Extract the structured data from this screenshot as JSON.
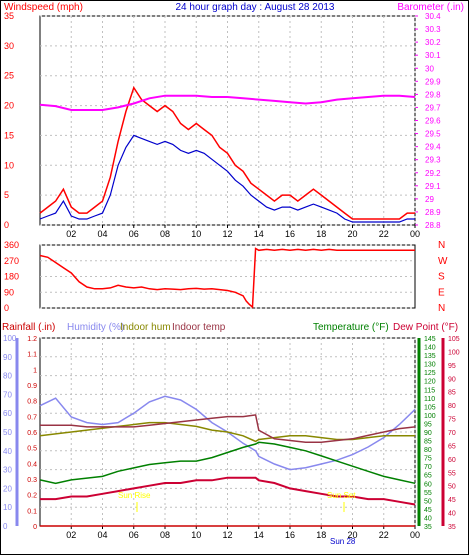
{
  "colors": {
    "frame": "#000000",
    "bg": "#ffffff",
    "grid": "#c0c0c0",
    "wind": "#ff0000",
    "wind_avg": "#0000cc",
    "barometer": "#ff00ff",
    "direction": "#ff0000",
    "rain": "#cc0000",
    "humidity": "#8888ee",
    "indoor_hum": "#888800",
    "indoor_temp": "#993344",
    "temperature": "#008000",
    "dew_point": "#cc0033",
    "sun": "#ffff00"
  },
  "chart_data": [
    {
      "type": "line",
      "title": "24 hour graph day : August 28 2013",
      "ylabel_left": "Windspeed (mph)",
      "ylabel_right": "Barometer (.in)",
      "x_ticks": [
        "02",
        "04",
        "06",
        "08",
        "10",
        "12",
        "14",
        "16",
        "18",
        "20",
        "22",
        "00"
      ],
      "xlim": [
        0,
        24
      ],
      "y_left_ticks": [
        "0",
        "5",
        "10",
        "15",
        "20",
        "25",
        "30",
        "35"
      ],
      "ylim_left": [
        0,
        35
      ],
      "y_right_ticks": [
        "28.8",
        "28.9",
        "29",
        "29.1",
        "29.2",
        "29.3",
        "29.4",
        "29.5",
        "29.6",
        "29.7",
        "29.8",
        "29.9",
        "30",
        "30.1",
        "30.2",
        "30.3",
        "30.4"
      ],
      "ylim_right": [
        28.8,
        30.4
      ],
      "series": [
        {
          "name": "Windspeed (mph)",
          "x": [
            0,
            0.5,
            1,
            1.5,
            2,
            2.5,
            3,
            3.5,
            4,
            4.5,
            5,
            5.5,
            6,
            6.5,
            7,
            7.5,
            8,
            8.5,
            9,
            9.5,
            10,
            10.5,
            11,
            11.5,
            12,
            12.5,
            13,
            13.5,
            14,
            14.5,
            15,
            15.5,
            16,
            16.5,
            17,
            17.5,
            18,
            18.5,
            19,
            19.5,
            20,
            20.5,
            21,
            21.5,
            22,
            22.5,
            23,
            23.5,
            24
          ],
          "values": [
            2,
            3,
            4,
            6,
            3,
            2,
            2,
            3,
            4,
            8,
            14,
            19,
            23,
            21,
            20,
            19,
            20,
            19,
            17,
            16,
            17,
            16,
            15,
            13,
            12,
            10,
            9,
            7,
            6,
            5,
            4,
            5,
            5,
            4,
            5,
            6,
            5,
            4,
            3,
            2,
            1,
            1,
            1,
            1,
            1,
            1,
            1,
            2,
            2
          ]
        },
        {
          "name": "Average wind",
          "x": [
            0,
            0.5,
            1,
            1.5,
            2,
            2.5,
            3,
            3.5,
            4,
            4.5,
            5,
            5.5,
            6,
            6.5,
            7,
            7.5,
            8,
            8.5,
            9,
            9.5,
            10,
            10.5,
            11,
            11.5,
            12,
            12.5,
            13,
            13.5,
            14,
            14.5,
            15,
            15.5,
            16,
            16.5,
            17,
            17.5,
            18,
            18.5,
            19,
            19.5,
            20,
            20.5,
            21,
            21.5,
            22,
            22.5,
            23,
            23.5,
            24
          ],
          "values": [
            1,
            1.5,
            2,
            4,
            1.5,
            1,
            1,
            1.5,
            2,
            5,
            10,
            13,
            15,
            14.5,
            14,
            13.5,
            14,
            13.5,
            12.5,
            12,
            12.5,
            12,
            11,
            10,
            9,
            7.5,
            6.5,
            5,
            4,
            3,
            2.5,
            3,
            3,
            2.5,
            3,
            3.5,
            3,
            2.5,
            2,
            1,
            0.5,
            0.5,
            0.5,
            0.5,
            0.5,
            0.5,
            0.5,
            1,
            1
          ]
        },
        {
          "name": "Barometer (.in)",
          "axis": "right",
          "x": [
            0,
            1,
            2,
            3,
            4,
            5,
            6,
            7,
            8,
            9,
            10,
            11,
            12,
            13,
            14,
            15,
            16,
            17,
            18,
            19,
            20,
            21,
            22,
            23,
            24
          ],
          "values": [
            29.72,
            29.71,
            29.68,
            29.68,
            29.68,
            29.7,
            29.73,
            29.77,
            29.79,
            29.79,
            29.79,
            29.78,
            29.78,
            29.77,
            29.76,
            29.75,
            29.74,
            29.73,
            29.74,
            29.76,
            29.77,
            29.78,
            29.79,
            29.79,
            29.78
          ]
        }
      ]
    },
    {
      "type": "line",
      "y_ticks": [
        "0",
        "90",
        "180",
        "270",
        "360"
      ],
      "ylim": [
        0,
        360
      ],
      "y_right_labels": [
        "N",
        "W",
        "S",
        "E",
        "N"
      ],
      "x": [
        0,
        0.5,
        1,
        1.5,
        2,
        2.5,
        3,
        3.5,
        4,
        4.5,
        5,
        5.5,
        6,
        6.5,
        7,
        7.5,
        8,
        8.5,
        9,
        9.5,
        10,
        10.5,
        11,
        11.5,
        12,
        12.5,
        13,
        13.2,
        13.4,
        13.6,
        13.8,
        14,
        14.5,
        15,
        15.5,
        16,
        16.5,
        17,
        17.5,
        18,
        18.5,
        19,
        20,
        21,
        22,
        23,
        24
      ],
      "values": [
        300,
        290,
        260,
        230,
        200,
        150,
        120,
        110,
        110,
        115,
        130,
        120,
        115,
        120,
        110,
        105,
        110,
        108,
        105,
        110,
        112,
        108,
        110,
        105,
        100,
        90,
        70,
        40,
        20,
        5,
        340,
        330,
        335,
        330,
        335,
        330,
        335,
        330,
        335,
        330,
        335,
        330,
        330,
        330,
        330,
        330,
        330
      ]
    },
    {
      "type": "line",
      "legend": [
        "Rainfall (.in)",
        "Humidity (%)",
        "Indoor hum",
        "Indoor temp",
        "Temperature (°F)",
        "Dew Point (°F)"
      ],
      "x_ticks": [
        "02",
        "04",
        "06",
        "08",
        "10",
        "12",
        "14",
        "16",
        "18",
        "20",
        "22",
        "00"
      ],
      "xlim": [
        0,
        24
      ],
      "y_humidity_ticks": [
        "0",
        "10",
        "20",
        "30",
        "40",
        "50",
        "60",
        "70",
        "80",
        "90",
        "100"
      ],
      "ylim_humidity": [
        0,
        100
      ],
      "y_rain_ticks": [
        "0",
        "0.1",
        "0.2",
        "0.3",
        "0.4",
        "0.5",
        "0.6",
        "0.7",
        "0.8",
        "0.9",
        "1",
        "1.1",
        "1.2"
      ],
      "ylim_rain": [
        0,
        1.2
      ],
      "y_temp_ticks": [
        "35",
        "40",
        "45",
        "50",
        "55",
        "60",
        "65",
        "70",
        "75",
        "80",
        "85",
        "90",
        "95",
        "100",
        "105",
        "110",
        "115",
        "120",
        "125",
        "130",
        "135",
        "140",
        "145"
      ],
      "ylim_temp": [
        35,
        145
      ],
      "y_dew_ticks": [
        "35",
        "40",
        "45",
        "50",
        "55",
        "60",
        "65",
        "70",
        "75",
        "80",
        "85",
        "90",
        "95",
        "100",
        "105"
      ],
      "ylim_dew": [
        35,
        105
      ],
      "sun_labels": [
        "Sun Rise",
        "Sun Set",
        "Sun 28"
      ],
      "x": [
        0,
        1,
        2,
        3,
        4,
        5,
        6,
        7,
        8,
        9,
        10,
        11,
        12,
        13,
        13.8,
        14,
        15,
        16,
        17,
        18,
        19,
        20,
        21,
        22,
        23,
        24
      ],
      "series": [
        {
          "name": "Rainfall (.in)",
          "values": [
            0,
            0,
            0,
            0,
            0,
            0,
            0,
            0,
            0,
            0,
            0,
            0,
            0,
            0,
            0,
            0,
            0,
            0,
            0,
            0,
            0,
            0,
            0,
            0,
            0,
            0
          ]
        },
        {
          "name": "Humidity (%)",
          "values": [
            64,
            68,
            58,
            55,
            54,
            55,
            60,
            66,
            69,
            67,
            62,
            55,
            50,
            44,
            40,
            37,
            33,
            30,
            31,
            33,
            35,
            38,
            42,
            47,
            54,
            62
          ]
        },
        {
          "name": "Indoor hum",
          "values": [
            48,
            49,
            50,
            51,
            52,
            53,
            54,
            55,
            55,
            54,
            53,
            51,
            50,
            48,
            45,
            46,
            47,
            48,
            48,
            47,
            46,
            46,
            47,
            48,
            48,
            48
          ]
        },
        {
          "name": "Indoor temp",
          "values": [
            94,
            94,
            94,
            93,
            93,
            93,
            93,
            94,
            95,
            96,
            97,
            98,
            99,
            99,
            100,
            91,
            86,
            85,
            84,
            84,
            85,
            86,
            88,
            90,
            92,
            93
          ]
        },
        {
          "name": "Temperature (°F)",
          "values": [
            62,
            60,
            62,
            63,
            64,
            67,
            69,
            71,
            72,
            73,
            73,
            75,
            78,
            81,
            83,
            84,
            83,
            81,
            79,
            76,
            73,
            70,
            67,
            64,
            62,
            60
          ]
        },
        {
          "name": "Dew Point (°F)",
          "values": [
            45,
            45,
            46,
            46,
            47,
            48,
            49,
            50,
            51,
            51,
            52,
            52,
            53,
            53,
            53,
            52,
            51,
            49,
            48,
            47,
            46,
            46,
            45,
            45,
            44,
            43
          ]
        }
      ]
    }
  ]
}
